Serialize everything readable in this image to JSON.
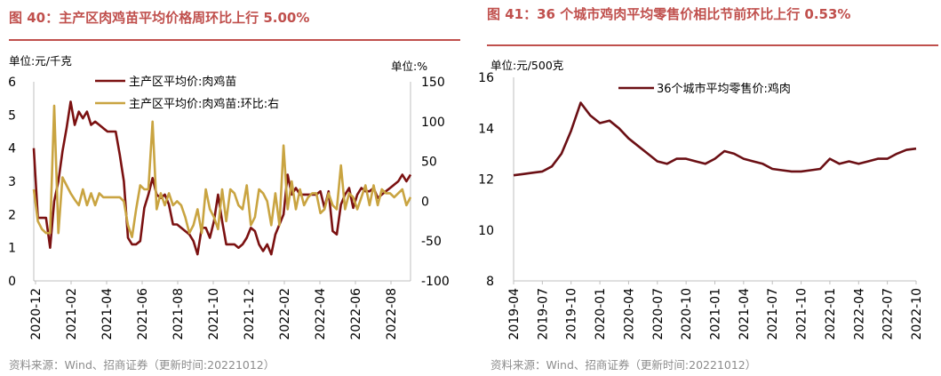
{
  "left": {
    "title": "图 40：主产区肉鸡苗平均价格周环比上行 5.00%",
    "source": "资料来源：Wind、招商证券（更新时间:20221012）",
    "chart_data": {
      "type": "line",
      "title": "图 40：主产区肉鸡苗平均价格周环比上行 5.00%",
      "y_unit_left": "单位:元/千克",
      "y_unit_right": "单位:%",
      "ylim_left": [
        0,
        6
      ],
      "yticks_left": [
        "0",
        "1",
        "2",
        "3",
        "4",
        "5",
        "6"
      ],
      "ylim_right": [
        -100,
        150
      ],
      "yticks_right": [
        "-100",
        "-50",
        "0",
        "50",
        "100",
        "150"
      ],
      "x_ticks": [
        "2020-12",
        "2021-02",
        "2021-04",
        "2021-06",
        "2021-08",
        "2021-10",
        "2021-12",
        "2022-02",
        "2022-04",
        "2022-06",
        "2022-08"
      ],
      "x_range": [
        0,
        92
      ],
      "series": [
        {
          "name": "主产区平均价:肉鸡苗",
          "axis": "left",
          "color": "#7b1111",
          "x": [
            0,
            1,
            2,
            3,
            4,
            5,
            6,
            7,
            8,
            9,
            10,
            11,
            12,
            13,
            14,
            15,
            16,
            17,
            18,
            19,
            20,
            21,
            22,
            23,
            24,
            25,
            26,
            27,
            28,
            29,
            30,
            31,
            32,
            33,
            34,
            35,
            36,
            37,
            38,
            39,
            40,
            41,
            42,
            43,
            44,
            45,
            46,
            47,
            48,
            49,
            50,
            51,
            52,
            53,
            54,
            55,
            56,
            57,
            58,
            59,
            60,
            61,
            62,
            63,
            64,
            65,
            66,
            67,
            68,
            69,
            70,
            71,
            72,
            73,
            74,
            75,
            76,
            77,
            78,
            79,
            80,
            81,
            82,
            83,
            84,
            85,
            86,
            87,
            88,
            89,
            90,
            91,
            92
          ],
          "y": [
            4.0,
            1.9,
            1.9,
            1.9,
            1.0,
            2.4,
            3.0,
            3.9,
            4.6,
            5.4,
            4.7,
            5.1,
            4.9,
            5.1,
            4.7,
            4.8,
            4.7,
            4.6,
            4.5,
            4.5,
            4.5,
            3.8,
            3.0,
            1.3,
            1.1,
            1.1,
            1.2,
            2.2,
            2.6,
            3.1,
            2.6,
            2.5,
            2.6,
            2.3,
            1.7,
            1.7,
            1.6,
            1.5,
            1.4,
            1.2,
            0.8,
            1.6,
            1.6,
            1.3,
            1.8,
            2.6,
            1.8,
            1.1,
            1.1,
            1.1,
            1.0,
            1.1,
            1.3,
            1.6,
            1.5,
            1.1,
            0.9,
            1.1,
            0.8,
            1.4,
            1.7,
            2.0,
            3.2,
            2.6,
            2.8,
            2.6,
            2.6,
            2.6,
            2.6,
            2.6,
            2.7,
            2.2,
            2.7,
            1.5,
            1.4,
            2.3,
            2.6,
            2.8,
            2.2,
            2.6,
            2.8,
            2.7,
            2.7,
            2.8,
            2.5,
            2.6,
            2.7,
            2.8,
            2.9,
            3.0,
            3.2,
            3.0,
            3.2
          ]
        },
        {
          "name": "主产区平均价:肉鸡苗:环比:右",
          "axis": "right",
          "color": "#c9a441",
          "x": [
            0,
            1,
            2,
            3,
            4,
            5,
            6,
            7,
            8,
            9,
            10,
            11,
            12,
            13,
            14,
            15,
            16,
            17,
            18,
            19,
            20,
            21,
            22,
            23,
            24,
            25,
            26,
            27,
            28,
            29,
            30,
            31,
            32,
            33,
            34,
            35,
            36,
            37,
            38,
            39,
            40,
            41,
            42,
            43,
            44,
            45,
            46,
            47,
            48,
            49,
            50,
            51,
            52,
            53,
            54,
            55,
            56,
            57,
            58,
            59,
            60,
            61,
            62,
            63,
            64,
            65,
            66,
            67,
            68,
            69,
            70,
            71,
            72,
            73,
            74,
            75,
            76,
            77,
            78,
            79,
            80,
            81,
            82,
            83,
            84,
            85,
            86,
            87,
            88,
            89,
            90,
            91,
            92
          ],
          "y": [
            15,
            -25,
            -35,
            -40,
            -40,
            120,
            -40,
            30,
            20,
            10,
            2,
            -5,
            15,
            -5,
            10,
            -5,
            10,
            5,
            5,
            5,
            5,
            5,
            0,
            -30,
            -45,
            -10,
            20,
            15,
            15,
            100,
            -10,
            10,
            -5,
            10,
            -5,
            0,
            -5,
            -20,
            -40,
            -30,
            -10,
            -40,
            15,
            -10,
            -20,
            -35,
            15,
            -25,
            15,
            10,
            -5,
            -10,
            20,
            -30,
            -20,
            15,
            10,
            0,
            -30,
            10,
            -30,
            70,
            -10,
            25,
            -10,
            15,
            -5,
            5,
            10,
            10,
            -15,
            -10,
            10,
            -5,
            -10,
            45,
            -10,
            10,
            5,
            -10,
            5,
            20,
            -5,
            20,
            -5,
            15,
            10,
            10,
            5,
            10,
            15,
            -5,
            5
          ]
        }
      ]
    }
  },
  "right": {
    "title": "图 41：36 个城市鸡肉平均零售价相比节前环比上行 0.53%",
    "source": "资料来源：Wind、招商证券（更新时间:20221012）",
    "chart_data": {
      "type": "line",
      "title": "图 41：36 个城市鸡肉平均零售价相比节前环比上行 0.53%",
      "y_unit": "单位:元/500克",
      "ylim": [
        8,
        16
      ],
      "yticks": [
        "8",
        "10",
        "12",
        "14",
        "16"
      ],
      "x_ticks": [
        "2019-04",
        "2019-07",
        "2019-10",
        "2020-01",
        "2020-04",
        "2020-07",
        "2020-10",
        "2021-01",
        "2021-04",
        "2021-07",
        "2021-10",
        "2022-01",
        "2022-04",
        "2022-07",
        "2022-10"
      ],
      "x_range": [
        "2019-04",
        "2022-10"
      ],
      "series": [
        {
          "name": "36个城市平均零售价:鸡肉",
          "color": "#6b0f14",
          "x": [
            "2019-04",
            "2019-05",
            "2019-06",
            "2019-07",
            "2019-08",
            "2019-09",
            "2019-10",
            "2019-11",
            "2019-12",
            "2020-01",
            "2020-02",
            "2020-03",
            "2020-04",
            "2020-05",
            "2020-06",
            "2020-07",
            "2020-08",
            "2020-09",
            "2020-10",
            "2020-11",
            "2020-12",
            "2021-01",
            "2021-02",
            "2021-03",
            "2021-04",
            "2021-05",
            "2021-06",
            "2021-07",
            "2021-08",
            "2021-09",
            "2021-10",
            "2021-11",
            "2021-12",
            "2022-01",
            "2022-02",
            "2022-03",
            "2022-04",
            "2022-05",
            "2022-06",
            "2022-07",
            "2022-08",
            "2022-09",
            "2022-10"
          ],
          "y": [
            12.15,
            12.2,
            12.25,
            12.3,
            12.5,
            13.0,
            13.9,
            15.0,
            14.5,
            14.2,
            14.3,
            14.0,
            13.6,
            13.3,
            13.0,
            12.7,
            12.6,
            12.8,
            12.8,
            12.7,
            12.6,
            12.8,
            13.1,
            13.0,
            12.8,
            12.7,
            12.6,
            12.4,
            12.35,
            12.3,
            12.3,
            12.35,
            12.4,
            12.8,
            12.6,
            12.7,
            12.6,
            12.7,
            12.8,
            12.8,
            13.0,
            13.15,
            13.2
          ]
        }
      ]
    }
  }
}
